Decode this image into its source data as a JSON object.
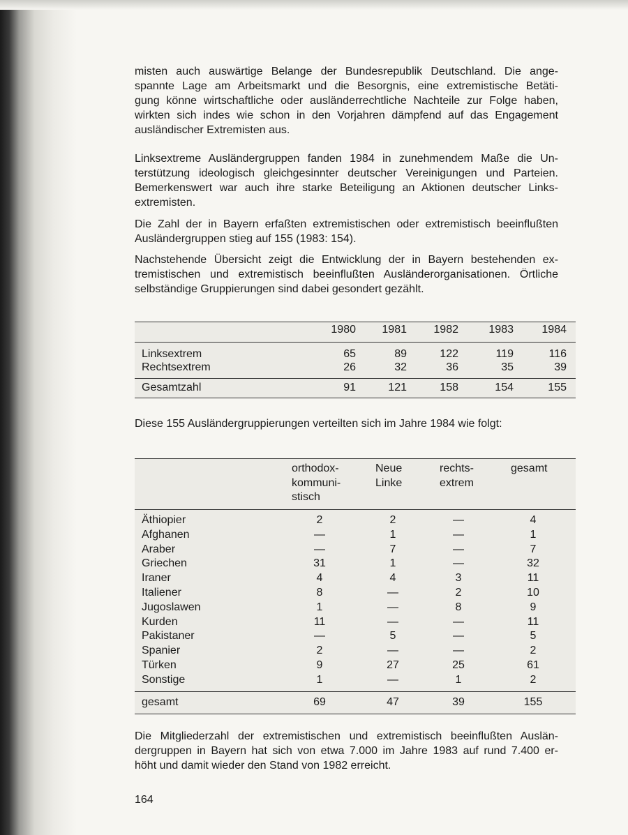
{
  "paragraphs": [
    {
      "lines": [
        "misten auch auswärtige Belange der Bundesrepublik Deutschland. Die ange-",
        "spannte Lage am Arbeitsmarkt und die Besorgnis, eine extremistische Betäti-",
        "gung könne wirtschaftliche oder ausländerrechtliche Nachteile zur Folge haben,",
        "wirkten sich indes wie schon in den Vorjahren dämpfend auf das Engagement",
        "ausländischer Extremisten aus."
      ]
    },
    {
      "lines": [
        "Linksextreme Ausländergruppen fanden 1984 in zunehmendem Maße die Un-",
        "terstützung ideologisch gleichgesinnter deutscher Vereinigungen und Parteien.",
        "Bemerkenswert war auch ihre starke Beteiligung an Aktionen deutscher Links-",
        "extremisten."
      ]
    },
    {
      "lines": [
        "Die Zahl der in Bayern erfaßten extremistischen oder extremistisch beeinflußten",
        "Ausländergruppen stieg auf 155 (1983: 154)."
      ]
    },
    {
      "lines": [
        "Nachstehende Übersicht zeigt die Entwicklung der in Bayern bestehenden ex-",
        "tremistischen und extremistisch beeinflußten Ausländerorganisationen. Örtliche",
        "selbständige Gruppierungen sind dabei gesondert gezählt."
      ]
    }
  ],
  "table1": {
    "columns": [
      1980,
      1981,
      1982,
      1983,
      1984
    ],
    "rows": [
      {
        "label": "Linksextrem",
        "values": [
          65,
          89,
          122,
          119,
          116
        ]
      },
      {
        "label": "Rechtsextrem",
        "values": [
          26,
          32,
          36,
          35,
          39
        ]
      }
    ],
    "total": {
      "label": "Gesamtzahl",
      "values": [
        91,
        121,
        158,
        154,
        155
      ]
    }
  },
  "caption": "Diese 155 Ausländergruppierungen verteilten sich im Jahre 1984 wie folgt:",
  "table2": {
    "columns": [
      [
        "orthodox-",
        "kommuni-",
        "stisch"
      ],
      [
        "Neue",
        "Linke"
      ],
      [
        "rechts-",
        "extrem"
      ],
      [
        "gesamt"
      ]
    ],
    "rows": [
      {
        "label": "Äthiopier",
        "values": [
          2,
          2,
          "—",
          4
        ]
      },
      {
        "label": "Afghanen",
        "values": [
          "—",
          1,
          "—",
          1
        ]
      },
      {
        "label": "Araber",
        "values": [
          "—",
          7,
          "—",
          7
        ]
      },
      {
        "label": "Griechen",
        "values": [
          31,
          1,
          "—",
          32
        ]
      },
      {
        "label": "Iraner",
        "values": [
          4,
          4,
          3,
          11
        ]
      },
      {
        "label": "Italiener",
        "values": [
          8,
          "—",
          2,
          10
        ]
      },
      {
        "label": "Jugoslawen",
        "values": [
          1,
          "—",
          8,
          9
        ]
      },
      {
        "label": "Kurden",
        "values": [
          11,
          "—",
          "—",
          11
        ]
      },
      {
        "label": "Pakistaner",
        "values": [
          "—",
          5,
          "—",
          5
        ]
      },
      {
        "label": "Spanier",
        "values": [
          2,
          "—",
          "—",
          2
        ]
      },
      {
        "label": "Türken",
        "values": [
          9,
          27,
          25,
          61
        ]
      },
      {
        "label": "Sonstige",
        "values": [
          1,
          "—",
          1,
          2
        ]
      }
    ],
    "total": {
      "label": "gesamt",
      "values": [
        69,
        47,
        39,
        155
      ]
    }
  },
  "closing": {
    "lines": [
      "Die Mitgliederzahl der extremistischen und extremistisch beeinflußten Auslän-",
      "dergruppen in Bayern hat sich von etwa 7.000 im Jahre 1983 auf rund 7.400 er-",
      "höht und damit wieder den Stand von 1982 erreicht."
    ]
  },
  "page_number": 164
}
